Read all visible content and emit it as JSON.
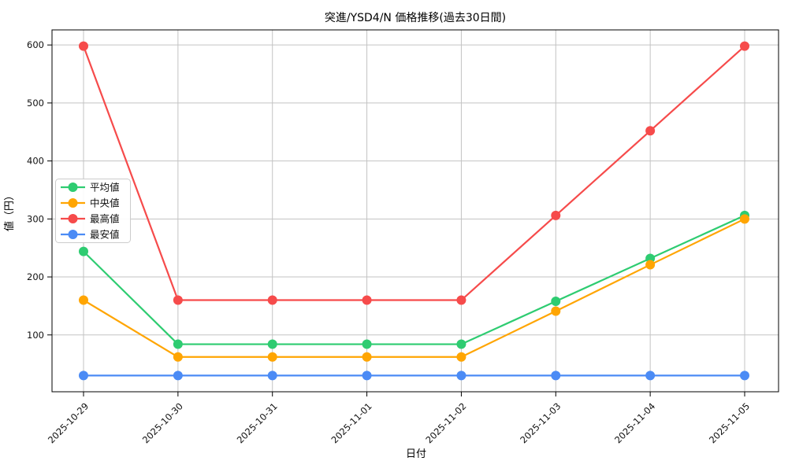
{
  "chart_data": {
    "type": "line",
    "title": "突進/YSD4/N 価格推移(過去30日間)",
    "xlabel": "日付",
    "ylabel": "値（円）",
    "categories": [
      "2025-10-29",
      "2025-10-30",
      "2025-10-31",
      "2025-11-01",
      "2025-11-02",
      "2025-11-03",
      "2025-11-04",
      "2025-11-05"
    ],
    "series": [
      {
        "id": "average",
        "name": "平均値",
        "color": "#2ecc71",
        "values": [
          244,
          84,
          84,
          84,
          84,
          158,
          232,
          306
        ]
      },
      {
        "id": "median",
        "name": "中央値",
        "color": "#ffa502",
        "values": [
          160,
          62,
          62,
          62,
          62,
          141,
          221,
          300
        ]
      },
      {
        "id": "high",
        "name": "最高値",
        "color": "#f64b4b",
        "values": [
          598,
          160,
          160,
          160,
          160,
          306,
          452,
          598
        ]
      },
      {
        "id": "low",
        "name": "最安値",
        "color": "#4b8bf5",
        "values": [
          30,
          30,
          30,
          30,
          30,
          30,
          30,
          30
        ]
      }
    ],
    "yticks": [
      100,
      200,
      300,
      400,
      500,
      600
    ],
    "ylim": [
      2,
      626
    ],
    "grid": true,
    "legend_position": "center-left",
    "x_tick_rotation": 45,
    "marker": "circle"
  }
}
